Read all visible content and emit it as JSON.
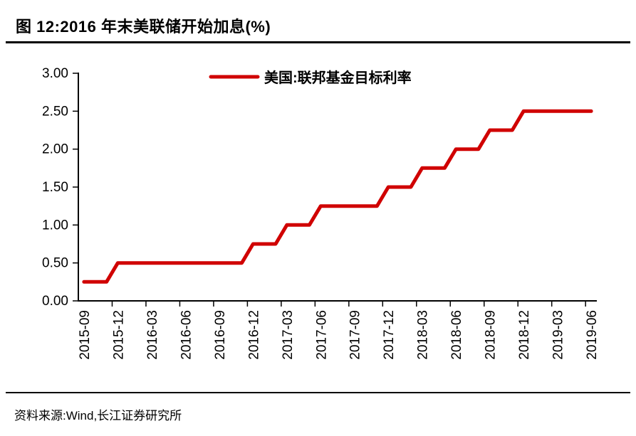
{
  "chart_data": {
    "type": "line",
    "title": "图 12:2016 年末美联储开始加息(%)",
    "legend": [
      {
        "name": "美国:联邦基金目标利率",
        "color": "#D00000"
      }
    ],
    "legend_position": "top-center",
    "x": [
      "2015-09",
      "2015-10",
      "2015-11",
      "2015-12",
      "2016-01",
      "2016-02",
      "2016-03",
      "2016-04",
      "2016-05",
      "2016-06",
      "2016-07",
      "2016-08",
      "2016-09",
      "2016-10",
      "2016-11",
      "2016-12",
      "2017-01",
      "2017-02",
      "2017-03",
      "2017-04",
      "2017-05",
      "2017-06",
      "2017-07",
      "2017-08",
      "2017-09",
      "2017-10",
      "2017-11",
      "2017-12",
      "2018-01",
      "2018-02",
      "2018-03",
      "2018-04",
      "2018-05",
      "2018-06",
      "2018-07",
      "2018-08",
      "2018-09",
      "2018-10",
      "2018-11",
      "2018-12",
      "2019-01",
      "2019-02",
      "2019-03",
      "2019-04",
      "2019-05",
      "2019-06"
    ],
    "series": [
      {
        "name": "美国:联邦基金目标利率",
        "values": [
          0.25,
          0.25,
          0.25,
          0.5,
          0.5,
          0.5,
          0.5,
          0.5,
          0.5,
          0.5,
          0.5,
          0.5,
          0.5,
          0.5,
          0.5,
          0.75,
          0.75,
          0.75,
          1.0,
          1.0,
          1.0,
          1.25,
          1.25,
          1.25,
          1.25,
          1.25,
          1.25,
          1.5,
          1.5,
          1.5,
          1.75,
          1.75,
          1.75,
          2.0,
          2.0,
          2.0,
          2.25,
          2.25,
          2.25,
          2.5,
          2.5,
          2.5,
          2.5,
          2.5,
          2.5,
          2.5
        ]
      }
    ],
    "ylim": [
      0,
      3
    ],
    "ytick_step": 0.5,
    "ytick_labels": [
      "0.00",
      "0.50",
      "1.00",
      "1.50",
      "2.00",
      "2.50",
      "3.00"
    ],
    "xtick_interval": 3,
    "grid": false,
    "axis_color": "#000000",
    "line_color": "#D00000",
    "line_width": 5
  },
  "footer": {
    "source": "资料来源:Wind,长江证券研究所"
  }
}
